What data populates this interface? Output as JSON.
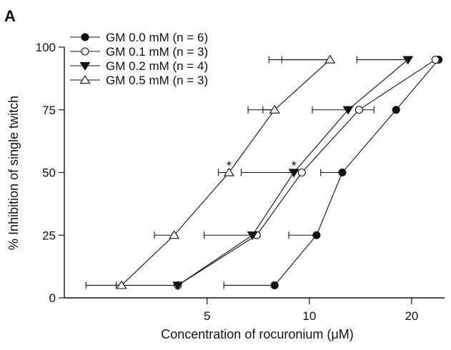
{
  "panel_label": "A",
  "chart_data": {
    "type": "line",
    "title": "",
    "xlabel": "Concentration of rocuronium (μM)",
    "ylabel": "% Inhibition of single twitch",
    "x_scale": "log",
    "xlim": [
      1.9,
      25
    ],
    "ylim": [
      0,
      100
    ],
    "x_ticks": [
      5,
      10,
      20
    ],
    "x_tick_labels": [
      "5",
      "10",
      "20"
    ],
    "y_ticks": [
      0,
      25,
      50,
      75,
      100
    ],
    "y_tick_labels": [
      "0",
      "25",
      "50",
      "75",
      "100"
    ],
    "grid": false,
    "legend_position": "top-left",
    "series": [
      {
        "name": "GM 0.0 mM (n = 6)",
        "marker": "filled-circle",
        "x": [
          7.9,
          10.5,
          12.5,
          18.0,
          24.0
        ],
        "y": [
          5,
          25,
          50,
          75,
          95
        ],
        "err_low": [
          5.6,
          8.7,
          10.8,
          null,
          null
        ],
        "err_high": [
          null,
          null,
          null,
          null,
          null
        ]
      },
      {
        "name": "GM 0.1 mM (n = 3)",
        "marker": "open-circle",
        "x": [
          4.1,
          7.0,
          9.5,
          14.0,
          23.5
        ],
        "y": [
          5,
          25,
          50,
          75,
          95
        ],
        "err_low": [
          null,
          null,
          null,
          null,
          null
        ],
        "err_high": [
          null,
          null,
          null,
          15.5,
          null
        ]
      },
      {
        "name": "GM 0.2 mM (n = 4)",
        "marker": "filled-triangle-down",
        "x": [
          4.1,
          6.8,
          9.0,
          13.0,
          19.5
        ],
        "y": [
          5,
          25,
          50,
          75,
          95
        ],
        "err_low": [
          2.7,
          4.9,
          6.3,
          10.2,
          13.8
        ],
        "err_high": [
          null,
          null,
          null,
          null,
          null
        ]
      },
      {
        "name": "GM 0.5 mM (n = 3)",
        "marker": "open-triangle-up",
        "x": [
          2.8,
          4.0,
          5.8,
          7.9,
          11.5
        ],
        "y": [
          5,
          25,
          50,
          75,
          95
        ],
        "err_low": [
          2.2,
          3.5,
          5.4,
          6.6,
          7.6
        ],
        "err_high": [
          2.7,
          null,
          null,
          7.3,
          8.3
        ]
      }
    ],
    "annotations": [
      {
        "text": "*",
        "x": 5.8,
        "y": 50
      },
      {
        "text": "*",
        "x": 9.0,
        "y": 50
      }
    ]
  }
}
